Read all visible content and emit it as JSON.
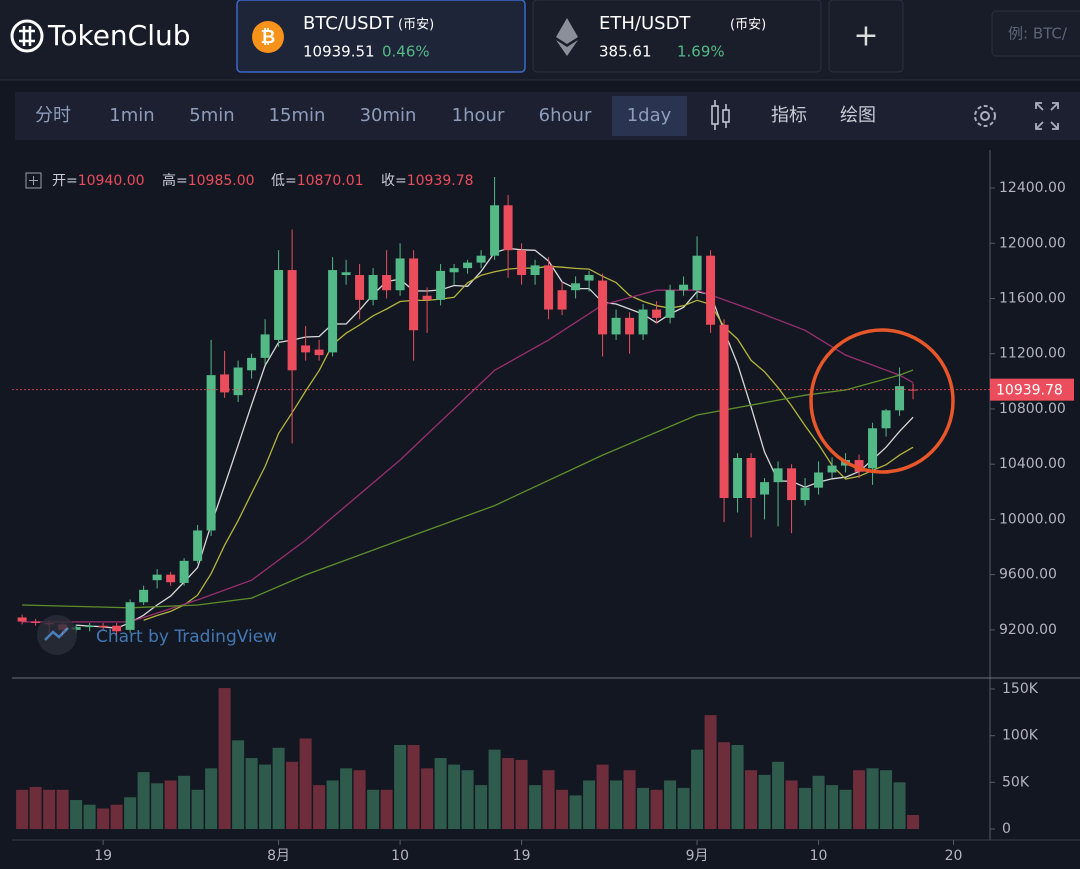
{
  "ui": {
    "logo": "TokenClub",
    "tabs": [
      {
        "pair": "BTC/USDT",
        "exchange": "(币安)",
        "price": "10939.51",
        "change": "0.46%"
      },
      {
        "pair": "ETH/USDT",
        "exchange": "(币安)",
        "price": "385.61",
        "change": "1.69%"
      }
    ],
    "add_button": "+",
    "search_placeholder": "例: BTC/",
    "toolbar": [
      "分时",
      "1min",
      "5min",
      "15min",
      "30min",
      "1hour",
      "6hour",
      "1day",
      "指标",
      "绘图"
    ],
    "ohlc_legend": [
      {
        "label": "开=",
        "value": "10940.00"
      },
      {
        "label": "高=",
        "value": "10985.00"
      },
      {
        "label": "低=",
        "value": "10870.01"
      },
      {
        "label": "收=",
        "value": "10939.78"
      }
    ],
    "watermark": "Chart by TradingView"
  },
  "chart_data": {
    "type": "candlestick",
    "up_color": "#53b987",
    "down_color": "#eb4d5c",
    "grid": false,
    "xlim": [
      -0.75,
      71.7
    ],
    "xticks": [
      {
        "value": 6,
        "label": "19"
      },
      {
        "value": 19,
        "label": "8月"
      },
      {
        "value": 28,
        "label": "10"
      },
      {
        "value": 37,
        "label": "19"
      },
      {
        "value": 50,
        "label": "9月"
      },
      {
        "value": 59,
        "label": "10"
      },
      {
        "value": 69,
        "label": "20"
      }
    ],
    "ylim": [
      8866,
      12661
    ],
    "yticks": [
      {
        "value": 9200,
        "label": "9200.00"
      },
      {
        "value": 9600,
        "label": "9600.00"
      },
      {
        "value": 10000,
        "label": "10000.00"
      },
      {
        "value": 10400,
        "label": "10400.00"
      },
      {
        "value": 10800,
        "label": "10800.00"
      },
      {
        "value": 11200,
        "label": "11200.00"
      },
      {
        "value": 11600,
        "label": "11600.00"
      },
      {
        "value": 12000,
        "label": "12000.00"
      },
      {
        "value": 12400,
        "label": "12400.00"
      }
    ],
    "open": [
      9290,
      9260,
      9250,
      9240,
      9200,
      9220,
      9230,
      9230,
      9200,
      9400,
      9560,
      9600,
      9540,
      9700,
      9920,
      11050,
      10900,
      11080,
      11170,
      11300,
      11806,
      11260,
      11230,
      11210,
      11770,
      11770,
      11590,
      11770,
      11660,
      11890,
      11620,
      11590,
      11790,
      11820,
      11860,
      11910,
      12275,
      11950,
      11770,
      11840,
      11660,
      11660,
      11730,
      11730,
      11340,
      11460,
      11340,
      11520,
      11460,
      11660,
      11660,
      11910,
      11410,
      10155,
      10445,
      10180,
      10270,
      10370,
      10140,
      10230,
      10340,
      10390,
      10430,
      10370,
      10660,
      10790,
      10940
    ],
    "high": [
      9310,
      9280,
      9270,
      9250,
      9240,
      9250,
      9250,
      9250,
      9420,
      9520,
      9640,
      9620,
      9720,
      9960,
      11300,
      11220,
      11150,
      11200,
      11450,
      11950,
      12100,
      11400,
      11300,
      11900,
      11880,
      11850,
      11820,
      11950,
      12000,
      11950,
      11680,
      11850,
      11850,
      11880,
      11950,
      12480,
      12350,
      12000,
      11880,
      11900,
      11720,
      11760,
      11800,
      11780,
      11520,
      11500,
      11560,
      11580,
      11700,
      11760,
      12050,
      11950,
      11450,
      10480,
      10480,
      10300,
      10420,
      10400,
      10300,
      10420,
      10450,
      10480,
      10470,
      10700,
      10800,
      11100,
      10985
    ],
    "low": [
      9240,
      9230,
      9180,
      9150,
      9180,
      9190,
      9200,
      9160,
      9180,
      9380,
      9500,
      9520,
      9520,
      9680,
      9880,
      10880,
      10850,
      11020,
      11120,
      11250,
      10550,
      11150,
      11150,
      11180,
      11700,
      11450,
      11550,
      11600,
      11620,
      11150,
      11350,
      11550,
      11700,
      11780,
      11820,
      11880,
      11750,
      11700,
      11700,
      11450,
      11480,
      11600,
      11650,
      11180,
      11300,
      11200,
      11300,
      11420,
      11420,
      11620,
      11600,
      11350,
      9980,
      10050,
      9870,
      10000,
      9950,
      9900,
      10100,
      10180,
      10300,
      10340,
      10300,
      10250,
      10600,
      10750,
      10870.01
    ],
    "close": [
      9260,
      9250,
      9240,
      9200,
      9220,
      9230,
      9220,
      9190,
      9400,
      9490,
      9600,
      9545,
      9700,
      9920,
      11045,
      10920,
      11100,
      11170,
      11340,
      11806,
      11080,
      11210,
      11190,
      11806,
      11790,
      11590,
      11770,
      11660,
      11890,
      11370,
      11590,
      11800,
      11820,
      11860,
      11910,
      12275,
      11950,
      11770,
      11840,
      11520,
      11520,
      11710,
      11770,
      11340,
      11460,
      11340,
      11520,
      11460,
      11660,
      11700,
      11910,
      11410,
      10155,
      10445,
      10155,
      10270,
      10370,
      10140,
      10230,
      10340,
      10390,
      10430,
      10345,
      10660,
      10790,
      10965,
      10939.78
    ],
    "overlays": [
      {
        "color": "#d8d8d8",
        "x": [
          4,
          5,
          6,
          7,
          8,
          9,
          10,
          11,
          12,
          13,
          14,
          15,
          16,
          17,
          18,
          19,
          20,
          21,
          22,
          23,
          24,
          25,
          26,
          27,
          28,
          29,
          30,
          31,
          32,
          33,
          34,
          35,
          36,
          37,
          38,
          39,
          40,
          41,
          42,
          43,
          44,
          45,
          46,
          47,
          48,
          49,
          50,
          51,
          52,
          53,
          54,
          55,
          56,
          57,
          58,
          59,
          60,
          61,
          62,
          63,
          64,
          65,
          66
        ],
        "values": [
          9234,
          9228,
          9222,
          9212,
          9252,
          9306,
          9380,
          9445,
          9547,
          9651,
          9962,
          10246,
          10537,
          10831,
          11115,
          11283,
          11299,
          11321,
          11325,
          11416,
          11415,
          11517,
          11629,
          11723,
          11740,
          11656,
          11654,
          11662,
          11694,
          11688,
          11796,
          11933,
          11963,
          11953,
          11949,
          11871,
          11720,
          11672,
          11672,
          11572,
          11560,
          11524,
          11486,
          11424,
          11488,
          11536,
          11650,
          11628,
          11367,
          11124,
          10815,
          10487,
          10279,
          10276,
          10233,
          10270,
          10294,
          10306,
          10347,
          10433,
          10523,
          10638,
          10740
        ]
      },
      {
        "color": "#b4b43c",
        "x": [
          9,
          10,
          11,
          12,
          13,
          14,
          15,
          16,
          17,
          18,
          19,
          20,
          21,
          22,
          23,
          24,
          25,
          26,
          27,
          28,
          29,
          30,
          31,
          32,
          33,
          34,
          35,
          36,
          37,
          38,
          39,
          40,
          41,
          42,
          43,
          44,
          45,
          46,
          47,
          48,
          49,
          50,
          51,
          52,
          53,
          54,
          55,
          56,
          57,
          58,
          59,
          60,
          61,
          62,
          63,
          64,
          65,
          66
        ],
        "values": [
          9270,
          9304,
          9334,
          9380,
          9452,
          9607,
          9813,
          9991,
          10189,
          10383,
          10623,
          10773,
          10929,
          11078,
          11266,
          11349,
          11408,
          11475,
          11524,
          11578,
          11586,
          11586,
          11596,
          11609,
          11714,
          11768,
          11794,
          11813,
          11821,
          11819,
          11834,
          11827,
          11818,
          11813,
          11761,
          11716,
          11622,
          11579,
          11548,
          11530,
          11548,
          11587,
          11557,
          11396,
          11306,
          11152,
          11069,
          10954,
          10822,
          10679,
          10543,
          10391,
          10293,
          10312,
          10355,
          10396,
          10466,
          10523
        ]
      },
      {
        "color": "#9a2f6e",
        "x": [
          0,
          8,
          13,
          17,
          21,
          28,
          35,
          39,
          43,
          47,
          50,
          54,
          58,
          61,
          65,
          66
        ],
        "values": [
          9258,
          9258,
          9417,
          9560,
          9850,
          10430,
          11080,
          11300,
          11553,
          11660,
          11660,
          11520,
          11370,
          11190,
          11045,
          10990
        ]
      },
      {
        "color": "#5f8f2a",
        "x": [
          0,
          8,
          13,
          17,
          21,
          28,
          35,
          43,
          50,
          58,
          61,
          65,
          66
        ],
        "values": [
          9380,
          9360,
          9380,
          9430,
          9598,
          9850,
          10100,
          10466,
          10756,
          10900,
          10937,
          11045,
          11082
        ]
      }
    ],
    "volume": {
      "ylim": [
        0,
        150000
      ],
      "yticks": [
        0,
        {
          "value": 50000,
          "label": "50K"
        },
        {
          "value": 100000,
          "label": "100K"
        },
        {
          "value": 150000,
          "label": "150K"
        }
      ],
      "values": [
        42000,
        45000,
        42000,
        42000,
        31000,
        26000,
        22000,
        26000,
        34000,
        61000,
        49000,
        52000,
        57000,
        42000,
        65000,
        151000,
        95000,
        76000,
        69000,
        87000,
        72000,
        97000,
        47000,
        52000,
        65000,
        63000,
        42000,
        42000,
        90000,
        90000,
        65000,
        76000,
        69000,
        63000,
        47000,
        85000,
        76000,
        74000,
        47000,
        63000,
        42000,
        36000,
        52000,
        69000,
        52000,
        63000,
        44000,
        42000,
        52000,
        44000,
        85000,
        122000,
        93000,
        90000,
        63000,
        58000,
        72000,
        52000,
        44000,
        57000,
        47000,
        42000,
        63000,
        65000,
        63000,
        50000,
        15000
      ]
    }
  }
}
